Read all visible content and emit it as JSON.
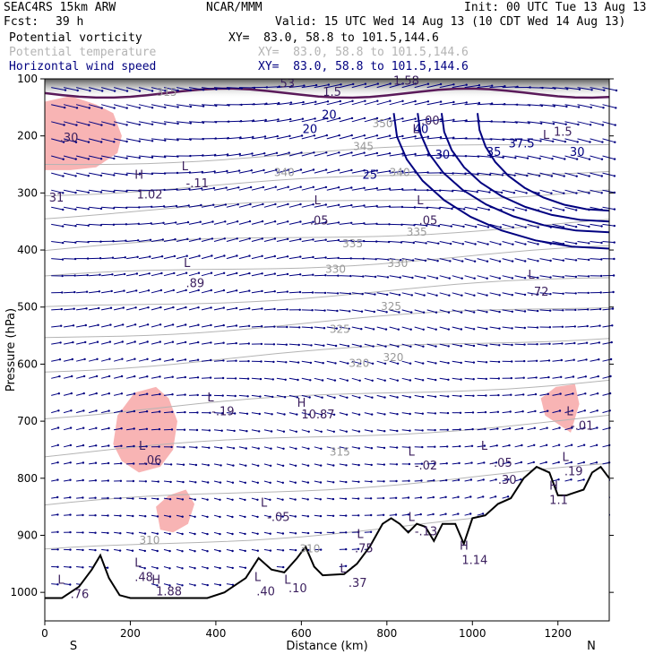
{
  "header": {
    "model": "SEAC4RS 15km ARW",
    "center": "NCAR/MMM",
    "init": "Init: 00 UTC Tue 13 Aug 13",
    "fcst_label": "Fcst:",
    "fcst_value": "39 h",
    "valid": "Valid: 15 UTC Wed 14 Aug 13 (10 CDT Wed 14 Aug 13)"
  },
  "fields": [
    {
      "name": "Potential vorticity",
      "xy": "XY=  83.0, 58.8 to 101.5,144.6",
      "color": "#000000"
    },
    {
      "name": "Potential temperature",
      "xy": "XY=  83.0, 58.8 to 101.5,144.6",
      "color": "#b4b4b4"
    },
    {
      "name": "Horizontal wind speed",
      "xy": "XY=  83.0, 58.8 to 101.5,144.6",
      "color": "#000080"
    }
  ],
  "chart_data": {
    "type": "cross-section",
    "xlabel": "Distance (km)",
    "ylabel": "Pressure (hPa)",
    "xlim": [
      0,
      1320
    ],
    "ylim": [
      1050,
      100
    ],
    "xticks": [
      0,
      200,
      400,
      600,
      800,
      1000,
      1200
    ],
    "yticks": [
      100,
      200,
      300,
      400,
      500,
      600,
      700,
      800,
      900,
      1000
    ],
    "x_end_labels": {
      "left": "S",
      "right": "N"
    },
    "colors": {
      "pv_fill": "#f8b4b4",
      "theta": "#b4b4b4",
      "wind": "#000080",
      "pv_contour": "#5a1a5a",
      "terrain": "#000000",
      "vectors": "#000080"
    },
    "terrain": [
      [
        0,
        1010
      ],
      [
        40,
        1010
      ],
      [
        80,
        990
      ],
      [
        110,
        960
      ],
      [
        130,
        935
      ],
      [
        150,
        975
      ],
      [
        175,
        1005
      ],
      [
        200,
        1010
      ],
      [
        380,
        1010
      ],
      [
        420,
        1000
      ],
      [
        450,
        985
      ],
      [
        470,
        975
      ],
      [
        500,
        940
      ],
      [
        530,
        960
      ],
      [
        560,
        965
      ],
      [
        590,
        940
      ],
      [
        610,
        920
      ],
      [
        630,
        955
      ],
      [
        650,
        970
      ],
      [
        700,
        968
      ],
      [
        730,
        950
      ],
      [
        760,
        920
      ],
      [
        790,
        880
      ],
      [
        810,
        870
      ],
      [
        830,
        880
      ],
      [
        850,
        895
      ],
      [
        870,
        880
      ],
      [
        890,
        885
      ],
      [
        910,
        910
      ],
      [
        930,
        880
      ],
      [
        960,
        880
      ],
      [
        980,
        915
      ],
      [
        1000,
        870
      ],
      [
        1030,
        865
      ],
      [
        1060,
        845
      ],
      [
        1090,
        835
      ],
      [
        1120,
        800
      ],
      [
        1150,
        780
      ],
      [
        1180,
        790
      ],
      [
        1200,
        830
      ],
      [
        1220,
        830
      ],
      [
        1240,
        825
      ],
      [
        1260,
        820
      ],
      [
        1280,
        790
      ],
      [
        1300,
        780
      ],
      [
        1320,
        800
      ]
    ],
    "theta_labels": [
      {
        "text": "315",
        "x": 285,
        "p": 130
      },
      {
        "text": "340",
        "x": 560,
        "p": 270
      },
      {
        "text": "340",
        "x": 830,
        "p": 270
      },
      {
        "text": "345",
        "x": 745,
        "p": 225
      },
      {
        "text": "350",
        "x": 790,
        "p": 185
      },
      {
        "text": "335",
        "x": 870,
        "p": 375
      },
      {
        "text": "335",
        "x": 720,
        "p": 395
      },
      {
        "text": "330",
        "x": 680,
        "p": 440
      },
      {
        "text": "330",
        "x": 825,
        "p": 430
      },
      {
        "text": "325",
        "x": 810,
        "p": 505
      },
      {
        "text": "325",
        "x": 690,
        "p": 545
      },
      {
        "text": "320",
        "x": 735,
        "p": 605
      },
      {
        "text": "320",
        "x": 815,
        "p": 595
      },
      {
        "text": "315",
        "x": 690,
        "p": 760
      },
      {
        "text": "310",
        "x": 245,
        "p": 915
      },
      {
        "text": "310",
        "x": 620,
        "p": 930
      }
    ],
    "wind_labels": [
      {
        "text": "20",
        "x": 665,
        "p": 170
      },
      {
        "text": "20",
        "x": 620,
        "p": 195
      },
      {
        "text": "25",
        "x": 760,
        "p": 275
      },
      {
        "text": "30",
        "x": 930,
        "p": 240
      },
      {
        "text": "35",
        "x": 1050,
        "p": 235
      },
      {
        "text": "40",
        "x": 880,
        "p": 195
      },
      {
        "text": "37.5",
        "x": 1115,
        "p": 220
      },
      {
        "text": "30",
        "x": 1245,
        "p": 235
      }
    ],
    "pv_fill_regions": [
      {
        "name": "upper-left",
        "pts": [
          [
            0,
            140
          ],
          [
            60,
            130
          ],
          [
            120,
            145
          ],
          [
            160,
            160
          ],
          [
            180,
            200
          ],
          [
            170,
            230
          ],
          [
            120,
            255
          ],
          [
            60,
            260
          ],
          [
            0,
            260
          ]
        ]
      },
      {
        "name": "mid-left",
        "pts": [
          [
            170,
            690
          ],
          [
            210,
            650
          ],
          [
            260,
            640
          ],
          [
            290,
            660
          ],
          [
            310,
            700
          ],
          [
            300,
            750
          ],
          [
            270,
            780
          ],
          [
            220,
            790
          ],
          [
            180,
            770
          ],
          [
            160,
            740
          ]
        ]
      },
      {
        "name": "low-center",
        "pts": [
          [
            260,
            850
          ],
          [
            290,
            830
          ],
          [
            330,
            820
          ],
          [
            350,
            845
          ],
          [
            335,
            880
          ],
          [
            300,
            895
          ],
          [
            270,
            890
          ]
        ]
      },
      {
        "name": "right",
        "pts": [
          [
            1160,
            660
          ],
          [
            1195,
            640
          ],
          [
            1240,
            635
          ],
          [
            1250,
            670
          ],
          [
            1230,
            720
          ],
          [
            1200,
            705
          ],
          [
            1170,
            690
          ]
        ]
      }
    ],
    "annotations": [
      {
        "text": "L",
        "x": 860,
        "p": 195
      },
      {
        "text": ".00",
        "x": 880,
        "p": 180
      },
      {
        "text": "L",
        "x": 1165,
        "p": 205
      },
      {
        "text": "1.5",
        "x": 1190,
        "p": 200
      },
      {
        "text": ".30",
        "x": 35,
        "p": 210
      },
      {
        "text": "H",
        "x": 210,
        "p": 275
      },
      {
        "text": "1.02",
        "x": 215,
        "p": 310
      },
      {
        "text": "L",
        "x": 320,
        "p": 260
      },
      {
        "text": "-.11",
        "x": 330,
        "p": 290
      },
      {
        "text": "L",
        "x": 630,
        "p": 320
      },
      {
        "text": ".05",
        "x": 620,
        "p": 355
      },
      {
        "text": "L",
        "x": 870,
        "p": 320
      },
      {
        "text": ".05",
        "x": 875,
        "p": 355
      },
      {
        "text": "31",
        "x": 10,
        "p": 315
      },
      {
        "text": "L",
        "x": 325,
        "p": 430
      },
      {
        "text": ".89",
        "x": 330,
        "p": 465
      },
      {
        "text": "L",
        "x": 1130,
        "p": 450
      },
      {
        "text": ".72",
        "x": 1135,
        "p": 480
      },
      {
        "text": "L",
        "x": 380,
        "p": 665
      },
      {
        "text": "-.19",
        "x": 390,
        "p": 690
      },
      {
        "text": "H",
        "x": 590,
        "p": 675
      },
      {
        "text": "10.87",
        "x": 600,
        "p": 695
      },
      {
        "text": "L",
        "x": 1220,
        "p": 690
      },
      {
        "text": "-.01",
        "x": 1230,
        "p": 715
      },
      {
        "text": "L",
        "x": 220,
        "p": 750
      },
      {
        "text": ".06",
        "x": 230,
        "p": 775
      },
      {
        "text": "L",
        "x": 850,
        "p": 760
      },
      {
        "text": "-.02",
        "x": 865,
        "p": 785
      },
      {
        "text": "L",
        "x": 1020,
        "p": 750
      },
      {
        "text": "-.05",
        "x": 1040,
        "p": 780
      },
      {
        "text": ".30",
        "x": 1060,
        "p": 810
      },
      {
        "text": "L",
        "x": 1210,
        "p": 770
      },
      {
        "text": ".19",
        "x": 1215,
        "p": 795
      },
      {
        "text": "H",
        "x": 1180,
        "p": 820
      },
      {
        "text": "1.1",
        "x": 1180,
        "p": 845
      },
      {
        "text": "L",
        "x": 505,
        "p": 850
      },
      {
        "text": "-.05",
        "x": 520,
        "p": 875
      },
      {
        "text": "L",
        "x": 850,
        "p": 875
      },
      {
        "text": "-.13",
        "x": 865,
        "p": 900
      },
      {
        "text": "L",
        "x": 730,
        "p": 905
      },
      {
        "text": ".75",
        "x": 725,
        "p": 930
      },
      {
        "text": "H",
        "x": 970,
        "p": 925
      },
      {
        "text": "1.14",
        "x": 975,
        "p": 950
      },
      {
        "text": "L",
        "x": 210,
        "p": 955
      },
      {
        "text": ".48",
        "x": 210,
        "p": 980
      },
      {
        "text": "H",
        "x": 250,
        "p": 985
      },
      {
        "text": "1.88",
        "x": 260,
        "p": 1005
      },
      {
        "text": "L",
        "x": 30,
        "p": 985
      },
      {
        "text": ".76",
        "x": 60,
        "p": 1010
      },
      {
        "text": "L",
        "x": 490,
        "p": 980
      },
      {
        "text": ".40",
        "x": 495,
        "p": 1005
      },
      {
        "text": "L",
        "x": 560,
        "p": 985
      },
      {
        "text": ".10",
        "x": 570,
        "p": 1000
      },
      {
        "text": "L",
        "x": 690,
        "p": 965
      },
      {
        "text": ".37",
        "x": 710,
        "p": 990
      },
      {
        "text": "53",
        "x": 550,
        "p": 115
      },
      {
        "text": "1.5",
        "x": 650,
        "p": 130
      },
      {
        "text": "1.58",
        "x": 815,
        "p": 110
      }
    ]
  }
}
